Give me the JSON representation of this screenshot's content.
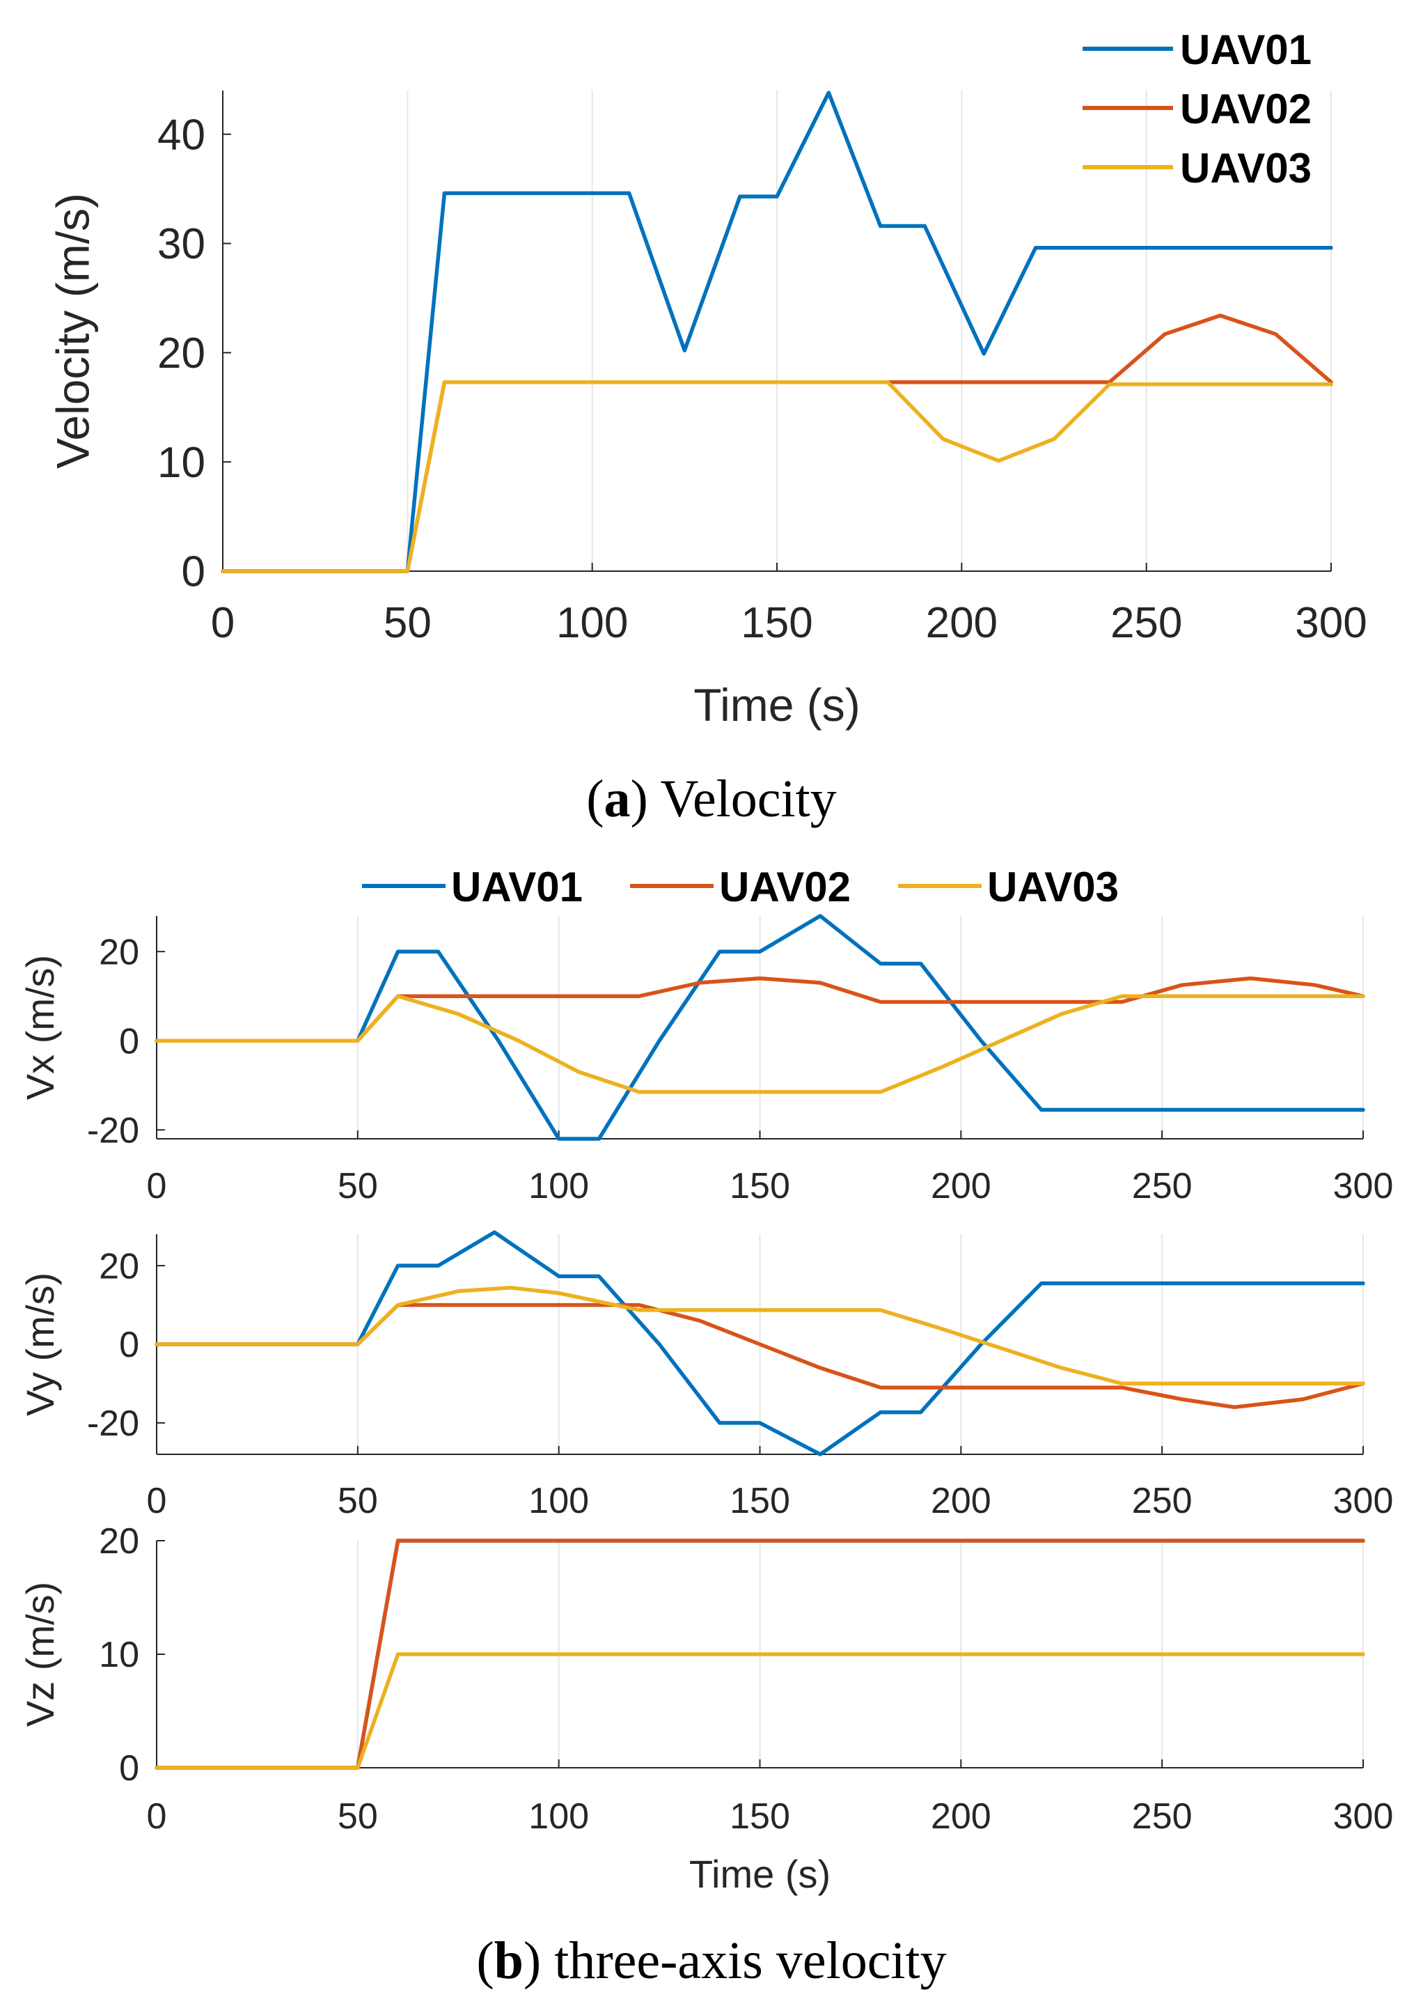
{
  "colors": {
    "UAV01": "#0072BD",
    "UAV02": "#D95319",
    "UAV03": "#EDB120"
  },
  "legend_names": [
    "UAV01",
    "UAV02",
    "UAV03"
  ],
  "captions": {
    "a_letter": "a",
    "a_text": " Velocity",
    "b_letter": "b",
    "b_text": " three-axis velocity"
  },
  "chart_data": [
    {
      "id": "velocity",
      "type": "line",
      "title": "",
      "xlabel": "Time (s)",
      "ylabel": "Velocity (m/s)",
      "xlim": [
        0,
        300
      ],
      "ylim": [
        0,
        44
      ],
      "xticks": [
        0,
        50,
        100,
        150,
        200,
        250,
        300
      ],
      "yticks": [
        0,
        10,
        20,
        30,
        40
      ],
      "xtick_labels": [
        "0",
        "50",
        "100",
        "150",
        "200",
        "250",
        "300"
      ],
      "ytick_labels": [
        "0",
        "10",
        "20",
        "30",
        "40"
      ],
      "grid": "x",
      "legend": "top-right",
      "series": [
        {
          "name": "UAV01",
          "points": [
            [
              0,
              0
            ],
            [
              50,
              0
            ],
            [
              60,
              34.6
            ],
            [
              110,
              34.6
            ],
            [
              125,
              20.2
            ],
            [
              140,
              34.3
            ],
            [
              150,
              34.3
            ],
            [
              164,
              43.8
            ],
            [
              178,
              31.6
            ],
            [
              190,
              31.6
            ],
            [
              206,
              19.9
            ],
            [
              220,
              29.6
            ],
            [
              300,
              29.6
            ]
          ]
        },
        {
          "name": "UAV02",
          "points": [
            [
              0,
              0
            ],
            [
              50,
              0
            ],
            [
              60,
              17.3
            ],
            [
              240,
              17.3
            ],
            [
              255,
              21.7
            ],
            [
              270,
              23.4
            ],
            [
              285,
              21.7
            ],
            [
              300,
              17.3
            ]
          ]
        },
        {
          "name": "UAV03",
          "points": [
            [
              0,
              0
            ],
            [
              50,
              0
            ],
            [
              60,
              17.3
            ],
            [
              180,
              17.3
            ],
            [
              195,
              12.1
            ],
            [
              210,
              10.1
            ],
            [
              225,
              12.1
            ],
            [
              240,
              17.1
            ],
            [
              300,
              17.1
            ]
          ]
        }
      ]
    },
    {
      "id": "vx",
      "type": "line",
      "title": "",
      "xlabel": "",
      "ylabel": "Vx (m/s)",
      "xlim": [
        0,
        300
      ],
      "ylim": [
        -22,
        28
      ],
      "xticks": [
        0,
        50,
        100,
        150,
        200,
        250,
        300
      ],
      "yticks": [
        -20,
        0,
        20
      ],
      "xtick_labels": [
        "0",
        "50",
        "100",
        "150",
        "200",
        "250",
        "300"
      ],
      "ytick_labels": [
        "-20",
        "0",
        "20"
      ],
      "grid": "x",
      "legend": "top-horizontal",
      "series": [
        {
          "name": "UAV01",
          "points": [
            [
              0,
              0
            ],
            [
              50,
              0
            ],
            [
              60,
              20
            ],
            [
              70,
              20
            ],
            [
              85,
              0
            ],
            [
              100,
              -22
            ],
            [
              110,
              -22
            ],
            [
              125,
              0
            ],
            [
              140,
              20
            ],
            [
              150,
              20
            ],
            [
              165,
              28
            ],
            [
              180,
              17.3
            ],
            [
              190,
              17.3
            ],
            [
              205,
              0
            ],
            [
              220,
              -15.5
            ],
            [
              300,
              -15.5
            ]
          ]
        },
        {
          "name": "UAV02",
          "points": [
            [
              0,
              0
            ],
            [
              50,
              0
            ],
            [
              60,
              10
            ],
            [
              120,
              10
            ],
            [
              135,
              13
            ],
            [
              150,
              14
            ],
            [
              165,
              13
            ],
            [
              180,
              8.7
            ],
            [
              240,
              8.7
            ],
            [
              255,
              12.5
            ],
            [
              272,
              14
            ],
            [
              288,
              12.5
            ],
            [
              300,
              10
            ]
          ]
        },
        {
          "name": "UAV03",
          "points": [
            [
              0,
              0
            ],
            [
              50,
              0
            ],
            [
              60,
              10
            ],
            [
              75,
              6
            ],
            [
              90,
              0
            ],
            [
              105,
              -7
            ],
            [
              120,
              -11.5
            ],
            [
              180,
              -11.5
            ],
            [
              195,
              -6
            ],
            [
              210,
              0
            ],
            [
              225,
              6
            ],
            [
              240,
              10
            ],
            [
              300,
              10
            ]
          ]
        }
      ]
    },
    {
      "id": "vy",
      "type": "line",
      "title": "",
      "xlabel": "",
      "ylabel": "Vy (m/s)",
      "xlim": [
        0,
        300
      ],
      "ylim": [
        -28,
        28
      ],
      "xticks": [
        0,
        50,
        100,
        150,
        200,
        250,
        300
      ],
      "yticks": [
        -20,
        0,
        20
      ],
      "xtick_labels": [
        "0",
        "50",
        "100",
        "150",
        "200",
        "250",
        "300"
      ],
      "ytick_labels": [
        "-20",
        "0",
        "20"
      ],
      "grid": "x",
      "legend": "none",
      "series": [
        {
          "name": "UAV01",
          "points": [
            [
              0,
              0
            ],
            [
              50,
              0
            ],
            [
              60,
              20
            ],
            [
              70,
              20
            ],
            [
              84,
              28.5
            ],
            [
              100,
              17.3
            ],
            [
              110,
              17.3
            ],
            [
              125,
              0
            ],
            [
              140,
              -20
            ],
            [
              150,
              -20
            ],
            [
              165,
              -28
            ],
            [
              180,
              -17.3
            ],
            [
              190,
              -17.3
            ],
            [
              205,
              0
            ],
            [
              220,
              15.5
            ],
            [
              300,
              15.5
            ]
          ]
        },
        {
          "name": "UAV02",
          "points": [
            [
              0,
              0
            ],
            [
              50,
              0
            ],
            [
              60,
              10
            ],
            [
              120,
              10
            ],
            [
              135,
              6
            ],
            [
              150,
              0
            ],
            [
              165,
              -6
            ],
            [
              180,
              -11
            ],
            [
              240,
              -11
            ],
            [
              255,
              -14
            ],
            [
              268,
              -16
            ],
            [
              285,
              -14
            ],
            [
              300,
              -10
            ]
          ]
        },
        {
          "name": "UAV03",
          "points": [
            [
              0,
              0
            ],
            [
              50,
              0
            ],
            [
              60,
              10
            ],
            [
              75,
              13.5
            ],
            [
              88,
              14.4
            ],
            [
              100,
              13
            ],
            [
              120,
              8.7
            ],
            [
              180,
              8.7
            ],
            [
              195,
              4
            ],
            [
              210,
              -1
            ],
            [
              225,
              -6
            ],
            [
              240,
              -10
            ],
            [
              300,
              -10
            ]
          ]
        }
      ]
    },
    {
      "id": "vz",
      "type": "line",
      "title": "",
      "xlabel": "Time (s)",
      "ylabel": "Vz (m/s)",
      "xlim": [
        0,
        300
      ],
      "ylim": [
        0,
        20
      ],
      "xticks": [
        0,
        50,
        100,
        150,
        200,
        250,
        300
      ],
      "yticks": [
        0,
        10,
        20
      ],
      "xtick_labels": [
        "0",
        "50",
        "100",
        "150",
        "200",
        "250",
        "300"
      ],
      "ytick_labels": [
        "0",
        "10",
        "20"
      ],
      "grid": "x",
      "legend": "none",
      "series": [
        {
          "name": "UAV01",
          "points": [
            [
              0,
              0
            ],
            [
              50,
              0
            ],
            [
              60,
              20
            ],
            [
              300,
              20
            ]
          ]
        },
        {
          "name": "UAV02",
          "points": [
            [
              0,
              0
            ],
            [
              50,
              0
            ],
            [
              60,
              20
            ],
            [
              300,
              20
            ]
          ]
        },
        {
          "name": "UAV03",
          "points": [
            [
              0,
              0
            ],
            [
              50,
              0
            ],
            [
              60,
              10
            ],
            [
              300,
              10
            ]
          ]
        }
      ]
    }
  ]
}
